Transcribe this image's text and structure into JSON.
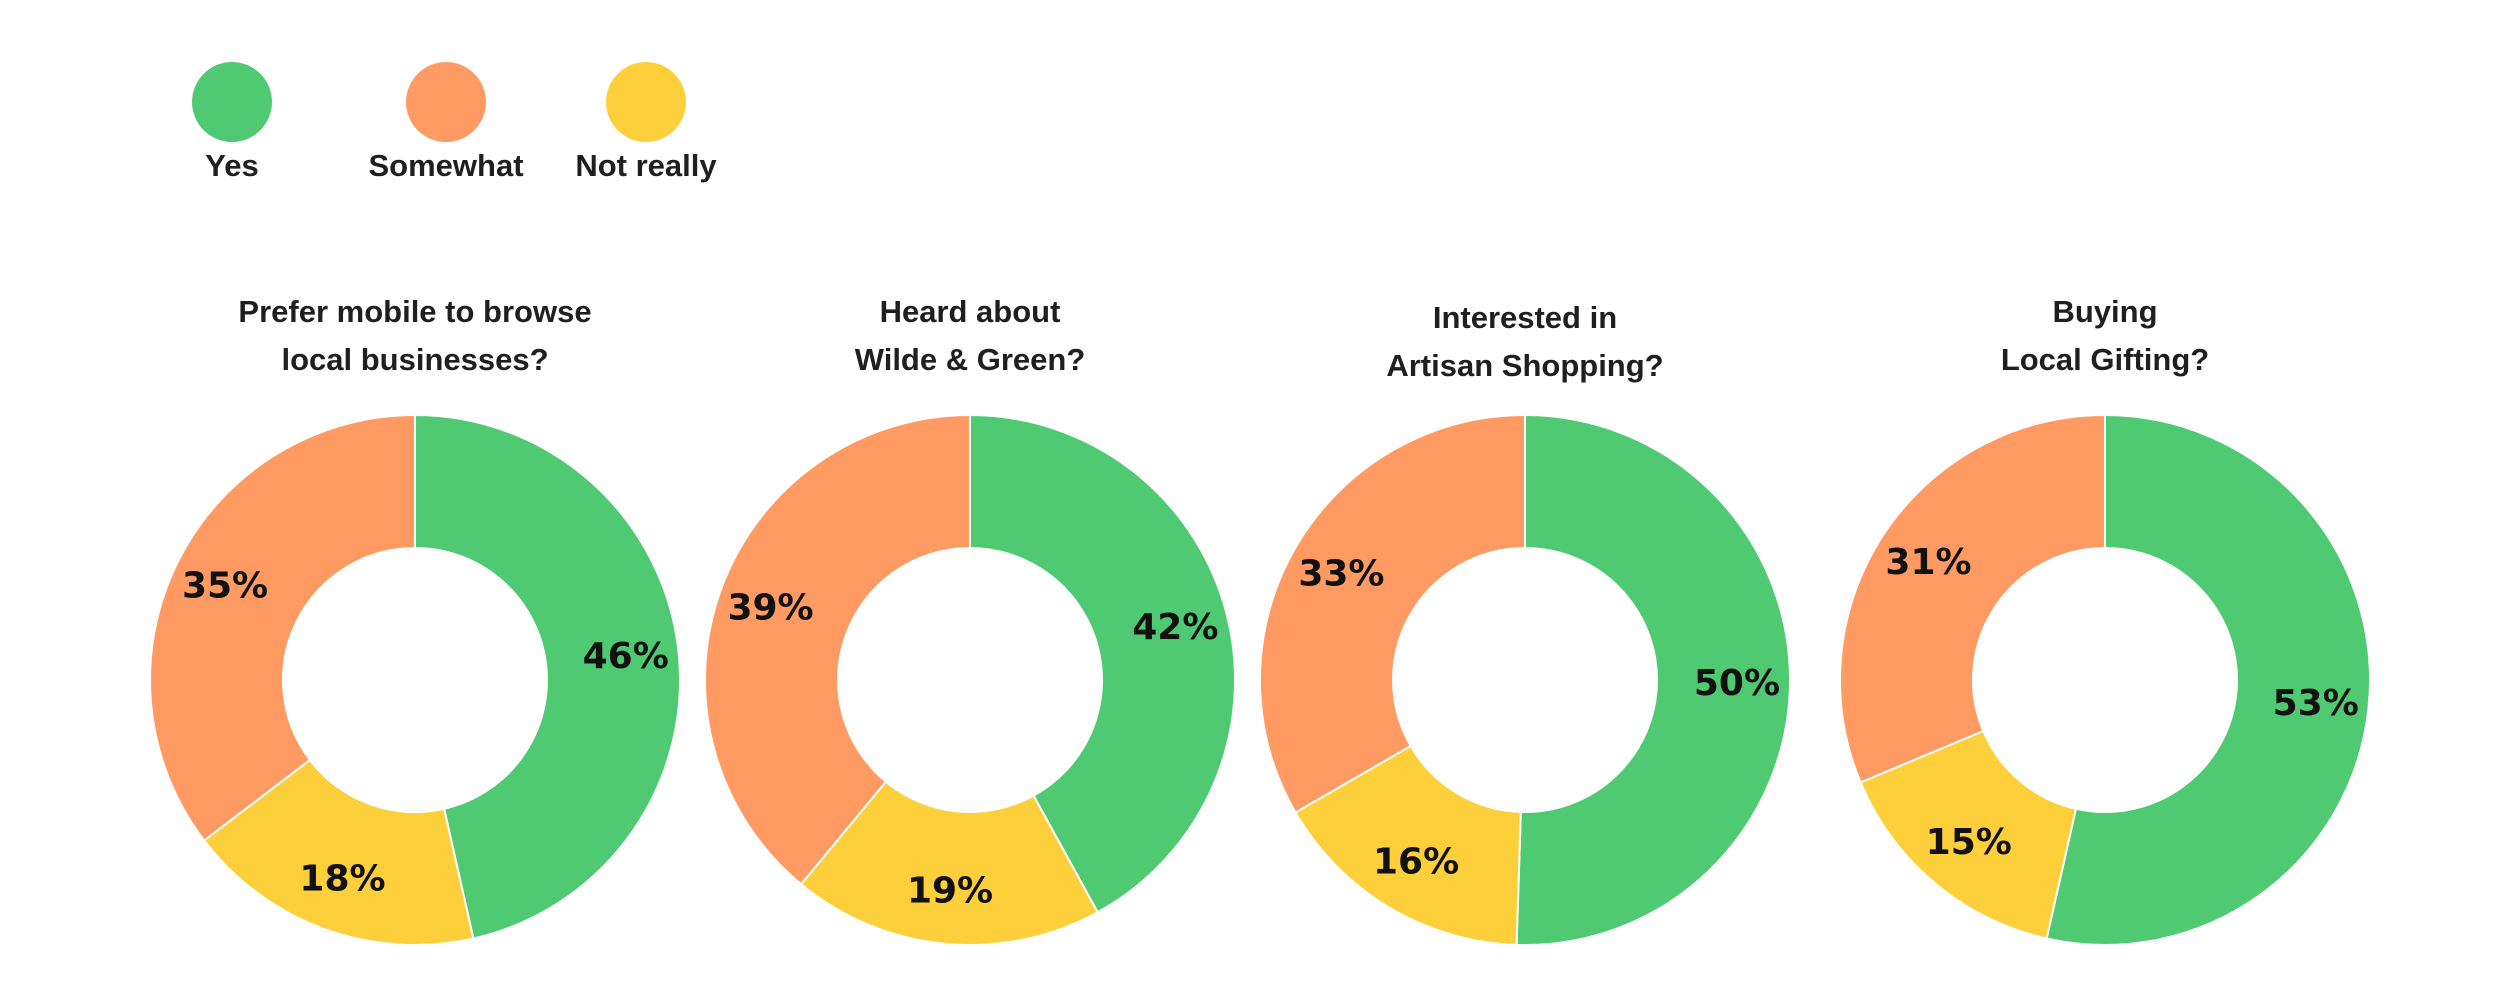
{
  "legend": [
    {
      "label": "Yes",
      "color": "#4fca72"
    },
    {
      "label": "Somewhat",
      "color": "#fe9a62"
    },
    {
      "label": "Not really",
      "color": "#fdcf3a"
    }
  ],
  "chart_data": [
    {
      "type": "pie",
      "donut": true,
      "title_lines": [
        "Prefer mobile to browse",
        "local businesses?"
      ],
      "categories": [
        "Yes",
        "Not really",
        "Somewhat"
      ],
      "values": [
        46,
        18,
        35
      ],
      "labels": [
        "46%",
        "18%",
        "35%"
      ]
    },
    {
      "type": "pie",
      "donut": true,
      "title_lines": [
        "Heard about",
        "Wilde & Green?"
      ],
      "categories": [
        "Yes",
        "Not really",
        "Somewhat"
      ],
      "values": [
        42,
        19,
        39
      ],
      "labels": [
        "42%",
        "19%",
        "39%"
      ]
    },
    {
      "type": "pie",
      "donut": true,
      "title_lines": [
        "Interested in",
        "Artisan Shopping?"
      ],
      "categories": [
        "Yes",
        "Not really",
        "Somewhat"
      ],
      "values": [
        50,
        16,
        33
      ],
      "labels": [
        "50%",
        "16%",
        "33%"
      ]
    },
    {
      "type": "pie",
      "donut": true,
      "title_lines": [
        "Buying",
        "Local Gifting?"
      ],
      "categories": [
        "Yes",
        "Not really",
        "Somewhat"
      ],
      "values": [
        53,
        15,
        31
      ],
      "labels": [
        "53%",
        "15%",
        "31%"
      ]
    }
  ]
}
